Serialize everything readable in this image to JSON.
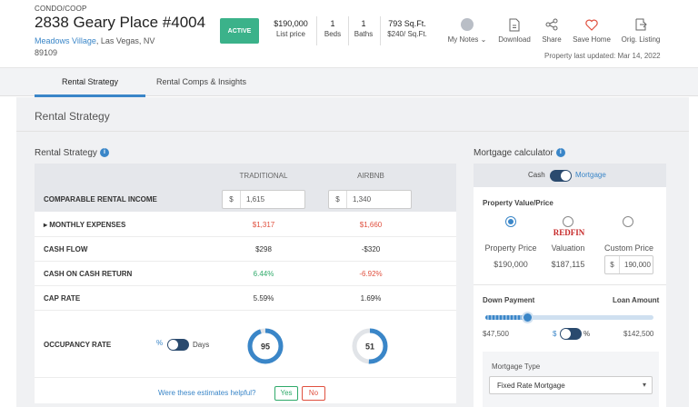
{
  "property": {
    "type": "CONDO/COOP",
    "title": "2838 Geary Place #4004",
    "neighborhood": "Meadows Village",
    "city": ", Las Vegas, NV",
    "zip": "89109",
    "status": "ACTIVE",
    "price": "$190,000",
    "price_label": "List price",
    "beds": "1",
    "beds_label": "Beds",
    "baths": "1",
    "baths_label": "Baths",
    "sqft": "793 Sq.Ft.",
    "price_per_sqft": "$240/ Sq.Ft.",
    "updated": "Property last updated: Mar 14, 2022"
  },
  "actions": {
    "notes": "My Notes",
    "download": "Download",
    "share": "Share",
    "save": "Save Home",
    "orig": "Orig. Listing"
  },
  "tabs": [
    "Rental Strategy",
    "Rental Comps & Insights"
  ],
  "section_title": "Rental Strategy",
  "strategy": {
    "title": "Rental Strategy",
    "info_icon": "i",
    "col_traditional": "TRADITIONAL",
    "col_airbnb": "AIRBNB",
    "comparable_label": "COMPARABLE RENTAL INCOME",
    "currency": "$",
    "trad_income": "1,615",
    "air_income": "1,340",
    "rows": [
      {
        "label": "MONTHLY EXPENSES",
        "trad": "$1,317",
        "air": "$1,660"
      },
      {
        "label": "CASH FLOW",
        "trad": "$298",
        "air": "-$320"
      },
      {
        "label": "CASH ON CASH RETURN",
        "trad": "6.44%",
        "air": "-6.92%"
      },
      {
        "label": "CAP RATE",
        "trad": "5.59%",
        "air": "1.69%"
      }
    ],
    "occupancy_label": "OCCUPANCY RATE",
    "occ_pct": "%",
    "occ_days": "Days",
    "trad_occupancy": 95,
    "air_occupancy": 51,
    "trad_occupancy_text": "95",
    "air_occupancy_text": "51",
    "helpful_q": "Were these estimates helpful?",
    "yes": "Yes",
    "no": "No",
    "colors": {
      "red": "#e0503f",
      "green": "#2faa6a",
      "blue": "#3a86c8"
    }
  },
  "mortgage": {
    "title": "Mortgage calculator",
    "info_icon": "i",
    "cash": "Cash",
    "mortgage": "Mortgage",
    "value_label": "Property Value/Price",
    "options": [
      {
        "label": "Property Price",
        "value": "$190,000"
      },
      {
        "label": "Valuation",
        "value": "$187,115"
      },
      {
        "label": "Custom Price",
        "value": "190,000"
      }
    ],
    "redfin": "REDFIN",
    "currency": "$",
    "down_payment_label": "Down Payment",
    "loan_amount_label": "Loan Amount",
    "down_payment_fraction": 0.25,
    "down_payment": "$47,500",
    "loan_amount": "$142,500",
    "dp_dollar": "$",
    "dp_pct": "%",
    "type_label": "Mortgage Type",
    "type_value": "Fixed Rate Mortgage"
  }
}
